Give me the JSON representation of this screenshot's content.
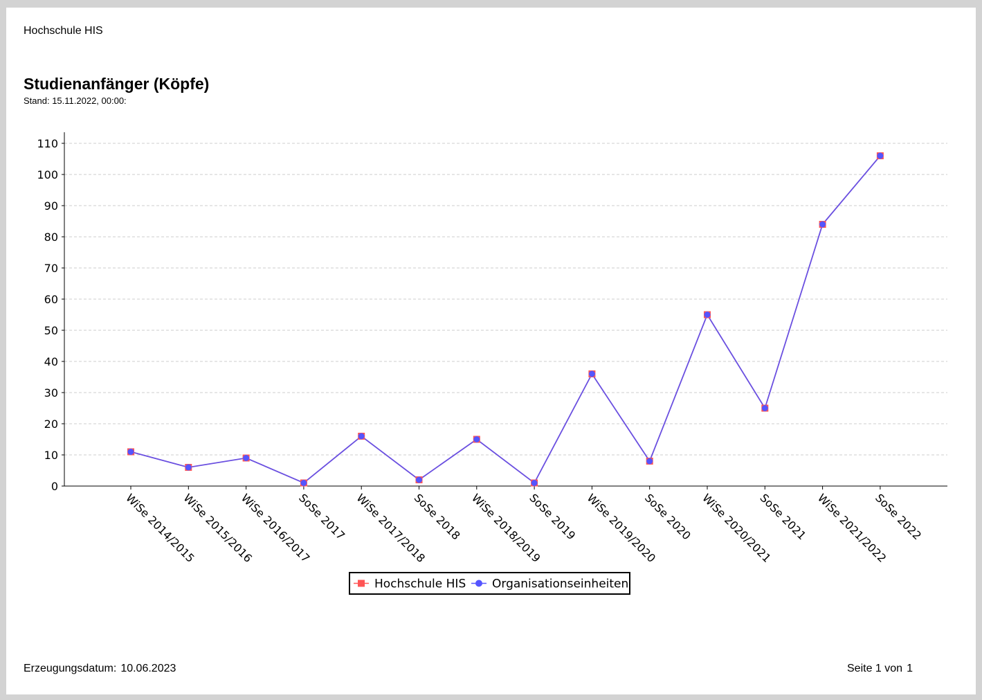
{
  "header": {
    "institution": "Hochschule HIS",
    "title": "Studienanfänger (Köpfe)",
    "stand": "Stand: 15.11.2022, 00:00:"
  },
  "footer": {
    "date_label": "Erzeugungsdatum:",
    "date_value": "10.06.2023",
    "page_label": "Seite 1 von",
    "page_total": "1"
  },
  "colors": {
    "series1": "#ff5555",
    "series2": "#5555ff",
    "line": "#6a4fe0",
    "grid": "#cccccc"
  },
  "chart_data": {
    "type": "line",
    "categories": [
      "WiSe 2014/2015",
      "WiSe 2015/2016",
      "WiSe 2016/2017",
      "SoSe 2017",
      "WiSe 2017/2018",
      "SoSe 2018",
      "WiSe 2018/2019",
      "SoSe 2019",
      "WiSe 2019/2020",
      "SoSe 2020",
      "WiSe 2020/2021",
      "SoSe 2021",
      "WiSe 2021/2022",
      "SoSe 2022"
    ],
    "series": [
      {
        "name": "Hochschule HIS",
        "marker": "square",
        "values": [
          11,
          6,
          9,
          1,
          16,
          2,
          15,
          1,
          36,
          8,
          55,
          25,
          84,
          106
        ]
      },
      {
        "name": "Organisationseinheiten",
        "marker": "circle",
        "values": [
          11,
          6,
          9,
          1,
          16,
          2,
          15,
          1,
          36,
          8,
          55,
          25,
          84,
          106
        ]
      }
    ],
    "ylim": [
      0,
      110
    ],
    "yticks": [
      0,
      10,
      20,
      30,
      40,
      50,
      60,
      70,
      80,
      90,
      100,
      110
    ],
    "grid": true,
    "legend_position": "bottom-center"
  }
}
